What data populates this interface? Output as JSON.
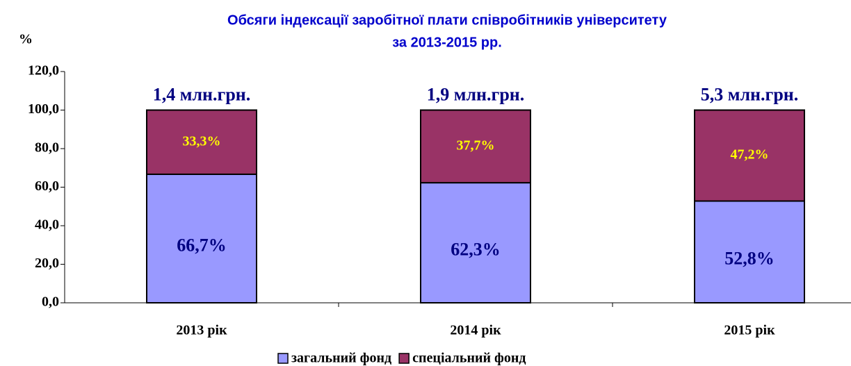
{
  "chart_data": {
    "type": "stacked_bar",
    "title": [
      "Обсяги  індексації заробітної плати співробітників університету",
      "за 2013-2015 рр."
    ],
    "y_label": "%",
    "categories": [
      "2013 рік",
      "2014 рік",
      "2015 рік"
    ],
    "series": [
      {
        "name": "загальний фонд",
        "color": "#9999ff",
        "values": [
          66.7,
          62.3,
          52.8
        ],
        "value_labels": [
          "66,7%",
          "62,3%",
          "52,8%"
        ]
      },
      {
        "name": "спеціальний фонд",
        "color": "#993366",
        "values": [
          33.3,
          37.7,
          47.2
        ],
        "value_labels": [
          "33,3%",
          "37,7%",
          "47,2%"
        ]
      }
    ],
    "annotations": [
      "1,4 млн.грн.",
      "1,9 млн.грн.",
      "5,3 млн.грн."
    ],
    "ylim": [
      0,
      120
    ],
    "yticks": [
      {
        "value": 0,
        "label": "0,0"
      },
      {
        "value": 20,
        "label": "20,0"
      },
      {
        "value": 40,
        "label": "40,0"
      },
      {
        "value": 60,
        "label": "60,0"
      },
      {
        "value": 80,
        "label": "80,0"
      },
      {
        "value": 100,
        "label": "100,0"
      },
      {
        "value": 120,
        "label": "120,0"
      }
    ],
    "grid": false,
    "legend": "bottom"
  }
}
